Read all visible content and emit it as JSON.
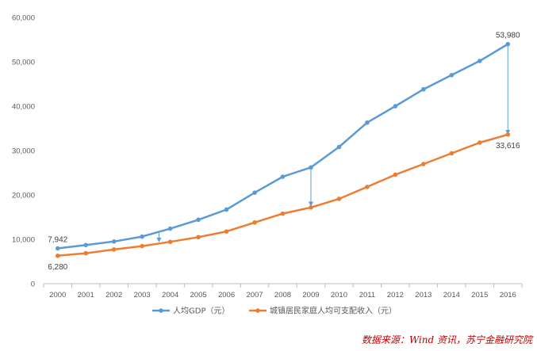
{
  "chart_data": {
    "type": "line",
    "categories": [
      "2000",
      "2001",
      "2002",
      "2003",
      "2004",
      "2005",
      "2006",
      "2007",
      "2008",
      "2009",
      "2010",
      "2011",
      "2012",
      "2013",
      "2014",
      "2015",
      "2016"
    ],
    "ylim": [
      0,
      60000
    ],
    "yticks": [
      "0",
      "10,000",
      "20,000",
      "30,000",
      "40,000",
      "50,000",
      "60,000"
    ],
    "grid": false,
    "legend_position": "bottom",
    "series": [
      {
        "name": "人均GDP（元）",
        "color": "#5b9bd5",
        "values": [
          7942,
          8700,
          9500,
          10600,
          12400,
          14400,
          16700,
          20500,
          24100,
          26200,
          30800,
          36300,
          40000,
          43800,
          47000,
          50200,
          53980
        ]
      },
      {
        "name": "城镇居民家庭人均可支配收入（元）",
        "color": "#ed7d31",
        "values": [
          6280,
          6860,
          7700,
          8470,
          9420,
          10490,
          11760,
          13790,
          15780,
          17170,
          19110,
          21810,
          24560,
          26960,
          29380,
          31790,
          33616
        ]
      }
    ],
    "data_labels": [
      {
        "series": 0,
        "index": 0,
        "text": "7,942",
        "pos": "above"
      },
      {
        "series": 1,
        "index": 0,
        "text": "6,280",
        "pos": "below"
      },
      {
        "series": 0,
        "index": 16,
        "text": "53,980",
        "pos": "above"
      },
      {
        "series": 1,
        "index": 16,
        "text": "33,616",
        "pos": "below"
      }
    ],
    "annotations": [
      {
        "type": "arrow",
        "x": 3.6,
        "from": 11500,
        "to": 9300
      },
      {
        "type": "arrow",
        "x": 9,
        "from": 26200,
        "to": 17400
      },
      {
        "type": "arrow",
        "x": 16,
        "from": 53980,
        "to": 33616
      }
    ]
  },
  "source_note": "数据来源：Wind 资讯，苏宁金融研究院"
}
